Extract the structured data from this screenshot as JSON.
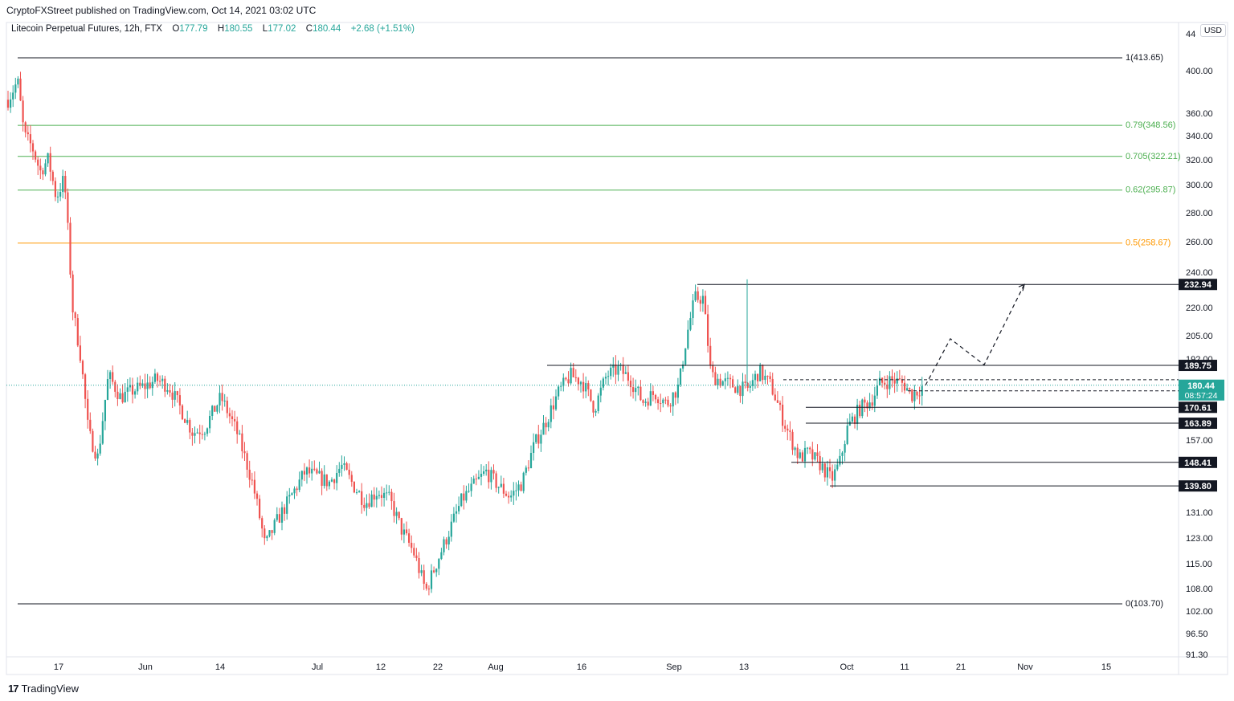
{
  "header": {
    "publisher": "CryptoFXStreet published on TradingView.com, Oct 14, 2021 03:02 UTC"
  },
  "legend": {
    "symbol": "Litecoin Perpetual Futures, 12h, FTX",
    "open_label": "O",
    "open": "177.79",
    "high_label": "H",
    "high": "180.55",
    "low_label": "L",
    "low": "177.02",
    "close_label": "C",
    "close": "180.44",
    "change": "+2.68 (+1.51%)"
  },
  "currency": "USD",
  "brand": {
    "logo": "17",
    "name": "TradingView"
  },
  "colors": {
    "up": "#26a69a",
    "down": "#ef5350",
    "fib_green": "#4caf50",
    "fib_orange": "#ff9800",
    "line": "#131722",
    "price_tag": "#26a69a"
  },
  "chart_data": {
    "type": "candlestick",
    "scale": "log",
    "ylim": [
      91.3,
      440
    ],
    "x_ticks": [
      "17",
      "Jun",
      "14",
      "Jul",
      "12",
      "22",
      "Aug",
      "16",
      "Sep",
      "13",
      "Oct",
      "11",
      "21",
      "Nov",
      "15"
    ],
    "y_ticks": [
      "400.00",
      "360.00",
      "340.00",
      "320.00",
      "300.00",
      "280.00",
      "260.00",
      "240.00",
      "220.00",
      "205.00",
      "192.00",
      "157.00",
      "131.00",
      "123.00",
      "115.00",
      "108.00",
      "102.00",
      "96.50",
      "91.30",
      "44"
    ],
    "fib_levels": [
      {
        "label": "1(413.65)",
        "value": 413.65,
        "color": "#131722"
      },
      {
        "label": "0.79(348.56)",
        "value": 348.56,
        "color": "#4caf50"
      },
      {
        "label": "0.705(322.21)",
        "value": 322.21,
        "color": "#4caf50"
      },
      {
        "label": "0.62(295.87)",
        "value": 295.87,
        "color": "#4caf50"
      },
      {
        "label": "0.5(258.67)",
        "value": 258.67,
        "color": "#ff9800"
      },
      {
        "label": "0(103.70)",
        "value": 103.7,
        "color": "#131722"
      }
    ],
    "levels": [
      {
        "label": "232.94",
        "value": 232.94,
        "style": "solid"
      },
      {
        "label": "189.75",
        "value": 189.75,
        "style": "solid"
      },
      {
        "label": "177.90",
        "value": 177.9,
        "style": "dashed"
      },
      {
        "label": "170.61",
        "value": 170.61,
        "style": "solid"
      },
      {
        "label": "163.89",
        "value": 163.89,
        "style": "solid"
      },
      {
        "label": "148.41",
        "value": 148.41,
        "style": "solid"
      },
      {
        "label": "139.80",
        "value": 139.8,
        "style": "solid"
      }
    ],
    "current_price": {
      "label": "180.44",
      "countdown": "08:57:24",
      "value": 180.44
    },
    "projection_path": [
      180.44,
      203,
      190,
      232.94
    ]
  }
}
